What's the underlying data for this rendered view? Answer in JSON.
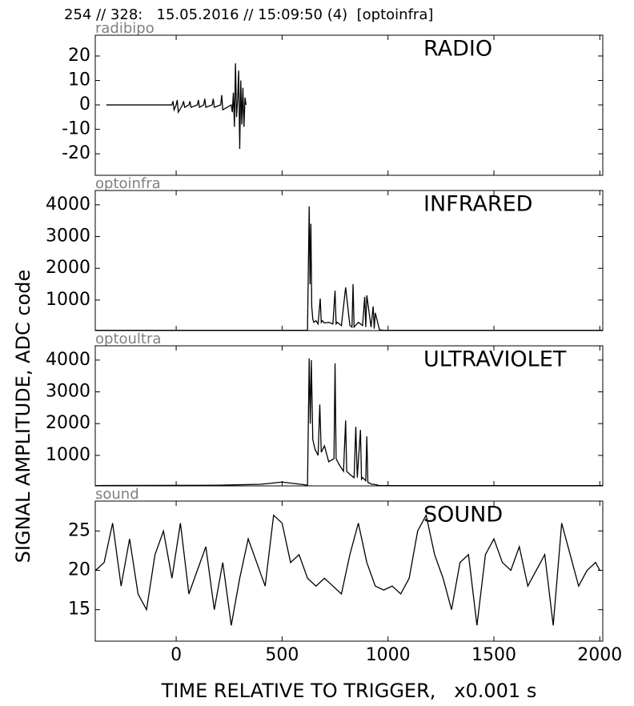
{
  "title": "254 // 328:   15.05.2016 // 15:09:50 (4)  [optoinfra]",
  "ylabel": "SIGNAL AMPLITUDE,  ADC code",
  "xlabel": "TIME RELATIVE TO TRIGGER,   x0.001 s",
  "chart_data": [
    {
      "type": "line",
      "label": "radibipo",
      "title": "RADIO",
      "color": "#000000",
      "xlim": [
        -382,
        2014
      ],
      "xticks": [
        0,
        500,
        1000,
        1500,
        2000
      ],
      "ylim": [
        -28.8,
        28.5
      ],
      "yticks": [
        -20,
        -10,
        0,
        10,
        20
      ],
      "x": [
        -330,
        -50,
        -20,
        -15,
        -10,
        0,
        5,
        10,
        30,
        35,
        40,
        60,
        65,
        70,
        100,
        105,
        110,
        130,
        135,
        140,
        170,
        175,
        180,
        210,
        215,
        220,
        260,
        265,
        270,
        275,
        280,
        285,
        290,
        295,
        300,
        305,
        310,
        315,
        320,
        325,
        330
      ],
      "values": [
        0,
        0,
        0,
        1.5,
        -2,
        0,
        2,
        -3,
        0,
        1.5,
        -1,
        0,
        1.5,
        -1,
        0,
        2,
        -1,
        0,
        2.5,
        -1,
        0,
        2.5,
        -1,
        0,
        4,
        -2,
        0,
        -3,
        5,
        -9,
        17,
        -5,
        2,
        14,
        -18,
        10,
        -8,
        7,
        -9,
        3,
        0
      ]
    },
    {
      "type": "line",
      "label": "optoinfra",
      "title": "INFRARED",
      "color": "#000000",
      "xlim": [
        -382,
        2014
      ],
      "xticks": [
        0,
        500,
        1000,
        1500,
        2000
      ],
      "ylim": [
        40,
        4450
      ],
      "yticks": [
        1000,
        2000,
        3000,
        4000
      ],
      "x": [
        -380,
        620,
        628,
        632,
        636,
        640,
        645,
        650,
        660,
        670,
        680,
        685,
        690,
        700,
        720,
        740,
        750,
        755,
        760,
        780,
        800,
        820,
        830,
        835,
        840,
        860,
        880,
        890,
        895,
        900,
        920,
        930,
        935,
        940,
        960,
        980,
        1000,
        2014
      ],
      "values": [
        50,
        50,
        3950,
        1500,
        3400,
        800,
        400,
        300,
        350,
        250,
        1050,
        300,
        350,
        280,
        300,
        250,
        1300,
        250,
        300,
        200,
        1400,
        200,
        150,
        1500,
        150,
        300,
        200,
        1100,
        150,
        1150,
        150,
        800,
        100,
        600,
        60,
        50,
        50,
        50
      ]
    },
    {
      "type": "line",
      "label": "optoultra",
      "title": "ULTRAVIOLET",
      "color": "#000000",
      "xlim": [
        -382,
        2014
      ],
      "xticks": [
        0,
        500,
        1000,
        1500,
        2000
      ],
      "ylim": [
        40,
        4450
      ],
      "yticks": [
        1000,
        2000,
        3000,
        4000
      ],
      "x": [
        -380,
        200,
        400,
        500,
        600,
        620,
        628,
        633,
        638,
        645,
        655,
        670,
        678,
        685,
        700,
        720,
        745,
        750,
        755,
        770,
        790,
        800,
        805,
        820,
        840,
        848,
        855,
        870,
        875,
        880,
        895,
        900,
        905,
        920,
        940,
        960,
        2014
      ],
      "values": [
        50,
        60,
        90,
        160,
        80,
        60,
        4050,
        2000,
        4000,
        1500,
        1200,
        1000,
        2600,
        1100,
        1300,
        800,
        900,
        3900,
        900,
        700,
        500,
        2100,
        500,
        400,
        300,
        1900,
        300,
        1800,
        250,
        300,
        200,
        1600,
        150,
        100,
        80,
        50,
        50
      ]
    },
    {
      "type": "line",
      "label": "sound",
      "title": "SOUND",
      "color": "#000000",
      "xlim": [
        -382,
        2014
      ],
      "xticks": [
        0,
        500,
        1000,
        1500,
        2000
      ],
      "ylim": [
        11,
        28.8
      ],
      "yticks": [
        15,
        20,
        25
      ],
      "x": [
        -380,
        -340,
        -300,
        -260,
        -220,
        -180,
        -140,
        -100,
        -60,
        -20,
        20,
        60,
        100,
        140,
        180,
        220,
        260,
        300,
        340,
        380,
        420,
        460,
        500,
        540,
        580,
        620,
        660,
        700,
        740,
        780,
        820,
        860,
        900,
        940,
        980,
        1020,
        1060,
        1100,
        1140,
        1180,
        1220,
        1260,
        1300,
        1340,
        1380,
        1420,
        1460,
        1500,
        1540,
        1580,
        1620,
        1660,
        1700,
        1740,
        1780,
        1820,
        1860,
        1900,
        1940,
        1980,
        2000
      ],
      "values": [
        20,
        21,
        26,
        18,
        24,
        17,
        15,
        22,
        25,
        19,
        26,
        17,
        20,
        23,
        15,
        21,
        13,
        19,
        24,
        21,
        18,
        27,
        26,
        21,
        22,
        19,
        18,
        19,
        18,
        17,
        22,
        26,
        21,
        18,
        17.5,
        18,
        17,
        19,
        25,
        27,
        22,
        19,
        15,
        21,
        22,
        13,
        22,
        24,
        21,
        20,
        23,
        18,
        20,
        22,
        13,
        26,
        22,
        18,
        20,
        21,
        20
      ]
    }
  ]
}
